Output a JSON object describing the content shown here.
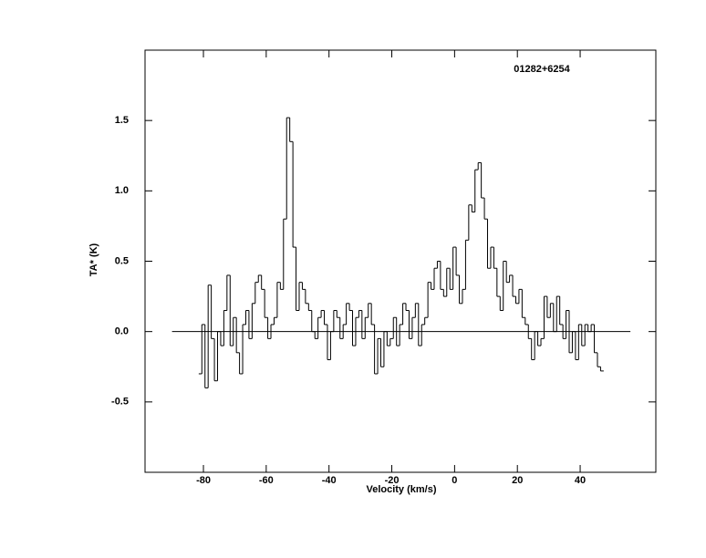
{
  "chart_data": {
    "type": "line",
    "line_style": "steps",
    "color": "#000000",
    "annotation": "01282+6254",
    "x_label": "Velocity (km/s)",
    "y_label": "TA* (K)",
    "xlim": [
      -98.6,
      64.1
    ],
    "ylim": [
      -1,
      2
    ],
    "xticks": [
      -80,
      -60,
      -40,
      -20,
      0,
      20,
      40
    ],
    "yticks": [
      -0.5,
      {
        "value": 0,
        "label": "0.0"
      },
      0.5,
      {
        "value": 1,
        "label": "1.0"
      },
      1.5
    ],
    "zero_line": {
      "value": 0,
      "x": [
        -90,
        56
      ]
    },
    "x": [
      -81,
      -80,
      -79,
      -78,
      -77,
      -76,
      -75,
      -74,
      -73,
      -72,
      -71,
      -70,
      -69,
      -68,
      -67,
      -66,
      -65,
      -64,
      -63,
      -62,
      -61,
      -60,
      -59,
      -58,
      -57,
      -56,
      -55,
      -54,
      -53,
      -52,
      -51,
      -50,
      -49,
      -48,
      -47,
      -46,
      -45,
      -44,
      -43,
      -42,
      -41,
      -40,
      -39,
      -38,
      -37,
      -36,
      -35,
      -34,
      -33,
      -32,
      -31,
      -30,
      -29,
      -28,
      -27,
      -26,
      -25,
      -24,
      -23,
      -22,
      -21,
      -20,
      -19,
      -18,
      -17,
      -16,
      -15,
      -14,
      -13,
      -12,
      -11,
      -10,
      -9,
      -8,
      -7,
      -6,
      -5,
      -4,
      -3,
      -2,
      -1,
      0,
      1,
      2,
      3,
      4,
      5,
      6,
      7,
      8,
      9,
      10,
      11,
      12,
      13,
      14,
      15,
      16,
      17,
      18,
      19,
      20,
      21,
      22,
      23,
      24,
      25,
      26,
      27,
      28,
      29,
      30,
      31,
      32,
      33,
      34,
      35,
      36,
      37,
      38,
      39,
      40,
      41,
      42,
      43,
      44,
      45,
      46,
      47
    ],
    "values": [
      -0.3,
      0.05,
      -0.4,
      0.33,
      -0.05,
      -0.35,
      0.0,
      -0.1,
      0.15,
      0.4,
      -0.1,
      0.1,
      -0.15,
      -0.3,
      0.05,
      0.15,
      -0.05,
      0.2,
      0.35,
      0.4,
      0.3,
      0.1,
      -0.05,
      0.05,
      0.1,
      0.35,
      0.3,
      0.8,
      1.52,
      1.35,
      0.6,
      0.15,
      0.35,
      0.3,
      0.2,
      0.15,
      0.0,
      -0.05,
      0.1,
      0.15,
      0.05,
      -0.2,
      0.0,
      0.15,
      0.1,
      -0.05,
      0.05,
      0.2,
      0.15,
      -0.1,
      0.1,
      0.15,
      -0.05,
      0.1,
      0.2,
      0.05,
      -0.3,
      -0.05,
      -0.25,
      0.0,
      -0.1,
      -0.05,
      0.1,
      -0.1,
      0.05,
      0.2,
      0.15,
      -0.05,
      0.1,
      0.2,
      -0.1,
      0.05,
      0.1,
      0.35,
      0.3,
      0.45,
      0.5,
      0.3,
      0.25,
      0.45,
      0.3,
      0.6,
      0.4,
      0.2,
      0.3,
      0.65,
      0.9,
      0.85,
      1.15,
      1.2,
      0.95,
      0.8,
      0.45,
      0.6,
      0.45,
      0.25,
      0.15,
      0.5,
      0.35,
      0.4,
      0.25,
      0.2,
      0.3,
      0.1,
      0.05,
      -0.05,
      -0.2,
      0.0,
      -0.1,
      -0.05,
      0.25,
      0.1,
      0.2,
      0.0,
      0.25,
      0.05,
      -0.05,
      0.15,
      -0.15,
      0.0,
      -0.2,
      0.05,
      -0.1,
      0.05,
      0.0,
      0.05,
      -0.15,
      -0.25,
      -0.28
    ]
  }
}
